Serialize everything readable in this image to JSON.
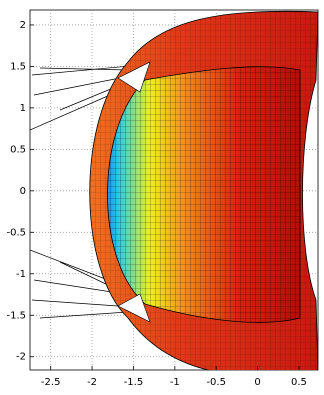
{
  "chart_data": {
    "type": "surface",
    "xlim": [
      -2.75,
      0.73
    ],
    "ylim": [
      -2.16,
      2.18
    ],
    "xticks": [
      -2.5,
      -2,
      -1.5,
      -1,
      -0.5,
      0,
      0.5
    ],
    "yticks": [
      -2,
      -1.5,
      -1,
      -0.5,
      0,
      0.5,
      1,
      1.5,
      2
    ],
    "grid": true
  }
}
